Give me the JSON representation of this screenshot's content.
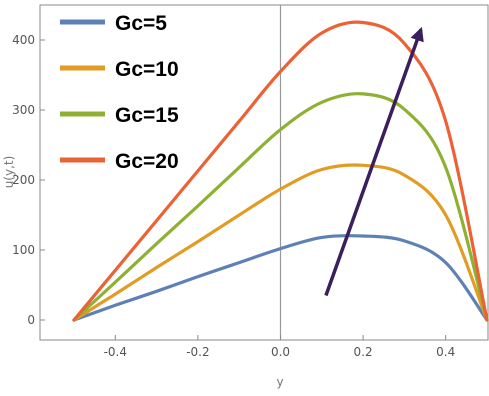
{
  "chart_data": {
    "type": "line",
    "title": "",
    "xlabel": "y",
    "ylabel": "u(y,t)",
    "xlim": [
      -0.5,
      0.5
    ],
    "ylim": [
      -10,
      440
    ],
    "xticks": [
      -0.4,
      -0.2,
      0.0,
      0.2,
      0.4
    ],
    "xtick_labels": [
      "-0.4",
      "-0.2",
      "0.0",
      "0.2",
      "0.4"
    ],
    "yticks": [
      0,
      100,
      200,
      300,
      400
    ],
    "ytick_labels": [
      "0",
      "100",
      "200",
      "300",
      "400"
    ],
    "legend_position": "top-left",
    "grid": false,
    "x": [
      -0.5,
      -0.4,
      -0.3,
      -0.2,
      -0.1,
      0.0,
      0.1,
      0.2,
      0.3,
      0.4,
      0.5
    ],
    "series": [
      {
        "name": "Gc=5",
        "color": "#5e81b5",
        "values": [
          0,
          21,
          41,
          62,
          82,
          102,
          118,
          120,
          113,
          82,
          0
        ]
      },
      {
        "name": "Gc=10",
        "color": "#e19c24",
        "values": [
          0,
          37,
          75,
          112,
          150,
          187,
          215,
          221,
          207,
          150,
          0
        ]
      },
      {
        "name": "Gc=15",
        "color": "#8fb032",
        "values": [
          0,
          54,
          109,
          163,
          218,
          272,
          311,
          323,
          301,
          218,
          0
        ]
      },
      {
        "name": "Gc=20",
        "color": "#eb6235",
        "values": [
          0,
          71,
          142,
          213,
          284,
          355,
          410,
          425,
          395,
          284,
          0
        ]
      }
    ],
    "annotation": {
      "type": "arrow",
      "color": "#3b1f5c",
      "from": [
        0.11,
        35
      ],
      "to": [
        0.34,
        415
      ]
    }
  }
}
